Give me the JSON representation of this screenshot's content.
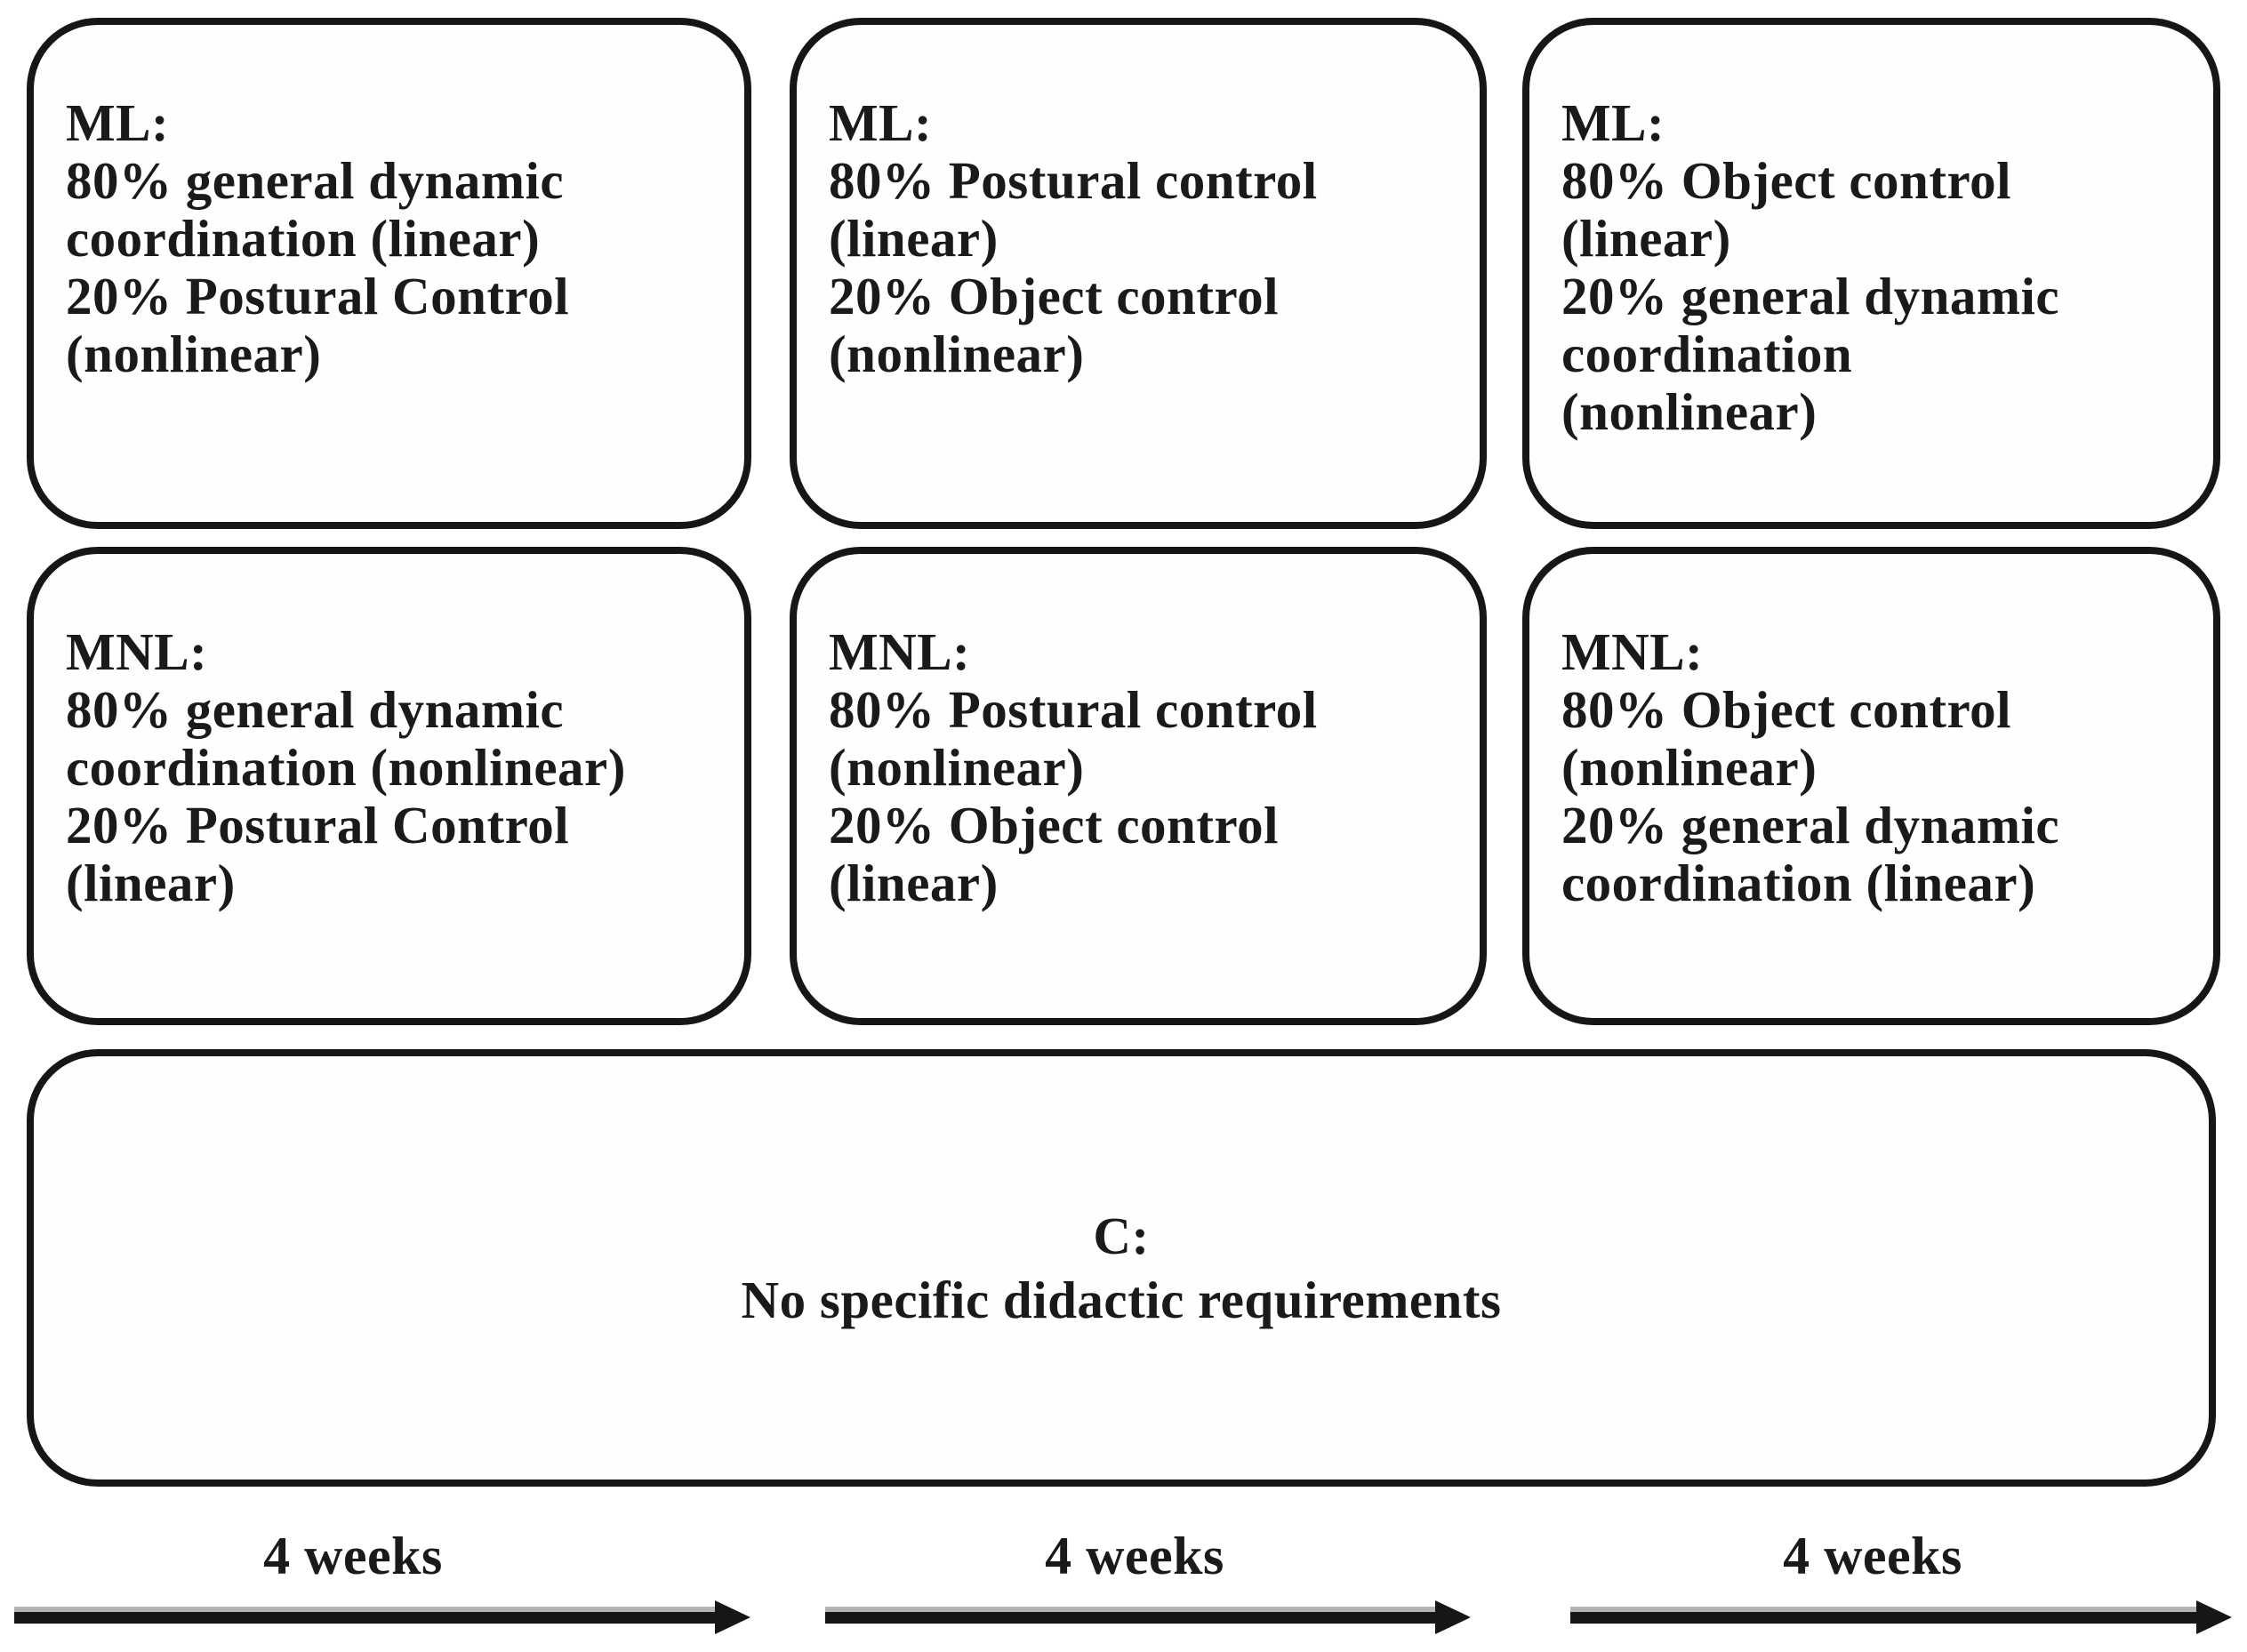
{
  "figure": {
    "type": "study-design-diagram",
    "colors": {
      "ink": "#1a1a1a",
      "border": "#161616",
      "background": "#ffffff"
    },
    "boxes": {
      "ml_gdc": {
        "group": "ML",
        "text": "ML:\n80% general dynamic\ncoordination (linear)\n20% Postural Control\n(nonlinear)"
      },
      "ml_pc": {
        "group": "ML",
        "text": "ML:\n80% Postural control\n(linear)\n20% Object control\n(nonlinear)"
      },
      "ml_oc": {
        "group": "ML",
        "text": "ML:\n80% Object control\n(linear)\n20% general dynamic\ncoordination\n(nonlinear)"
      },
      "mnl_gdc": {
        "group": "MNL",
        "text": "MNL:\n80% general dynamic\ncoordination (nonlinear)\n20% Postural Control\n(linear)"
      },
      "mnl_pc": {
        "group": "MNL",
        "text": "MNL:\n80% Postural control\n(nonlinear)\n20% Object control\n(linear)"
      },
      "mnl_oc": {
        "group": "MNL",
        "text": "MNL:\n80% Object control\n(nonlinear)\n20% general dynamic\ncoordination (linear)"
      },
      "control": {
        "group": "C",
        "text": "C:\nNo specific didactic requirements"
      }
    },
    "timeline": {
      "phase1": {
        "label": "4 weeks"
      },
      "phase2": {
        "label": "4 weeks"
      },
      "phase3": {
        "label": "4 weeks"
      }
    }
  }
}
